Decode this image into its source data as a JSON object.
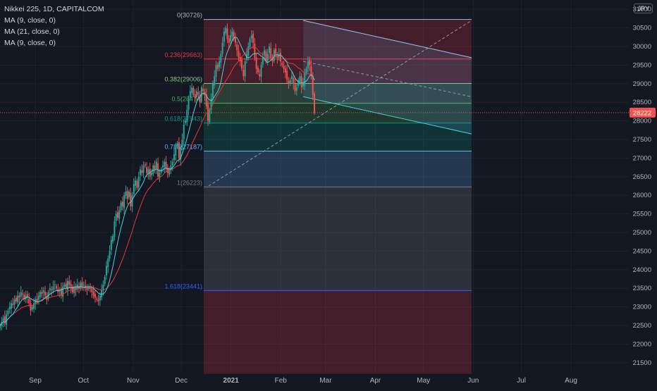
{
  "header": {
    "symbol_line": "Nikkei 225, 1D, CAPITALCOM",
    "indicators": [
      "MA (9, close, 0)",
      "MA (21, close, 0)",
      "MA (9, close, 0)"
    ],
    "currency": "JPY"
  },
  "colors": {
    "background": "#131722",
    "grid": "#1e222d",
    "up": "#26a69a",
    "down": "#ef5350",
    "ma9": "#4dd0e1",
    "ma21": "#e53935",
    "price_line": "#ef5350"
  },
  "price_axis": {
    "ticks": [
      31000,
      30500,
      30000,
      29500,
      29000,
      28500,
      28000,
      27500,
      27000,
      26500,
      26000,
      25500,
      25000,
      24500,
      24000,
      23500,
      23000,
      22500,
      22000,
      21500
    ],
    "ylim": [
      21250,
      31250
    ],
    "last_price": "28222"
  },
  "time_axis": {
    "labels": [
      {
        "text": "Sep",
        "day": 22
      },
      {
        "text": "Oct",
        "day": 52
      },
      {
        "text": "Nov",
        "day": 83
      },
      {
        "text": "Dec",
        "day": 113
      },
      {
        "text": "2021",
        "day": 144
      },
      {
        "text": "Feb",
        "day": 175
      },
      {
        "text": "Mar",
        "day": 203
      },
      {
        "text": "Apr",
        "day": 234
      },
      {
        "text": "May",
        "day": 264
      },
      {
        "text": "Jun",
        "day": 295
      },
      {
        "text": "Jul",
        "day": 325
      },
      {
        "text": "Aug",
        "day": 356
      }
    ],
    "day_range": [
      0,
      392
    ]
  },
  "chart_data": {
    "type": "candlestick",
    "title": "Nikkei 225, 1D, CAPITALCOM",
    "x_unit": "day index (Sep label = day 22)",
    "fib_retracement": {
      "start_day": 127,
      "end_day": 294,
      "levels": [
        {
          "ratio": "0",
          "price": 30726,
          "label": "0(30726)",
          "color": "#b2b5be",
          "fill": "rgba(120,123,134,0.25)"
        },
        {
          "ratio": "0.236",
          "price": 29663,
          "label": "0.236(29663)",
          "color": "#f23645",
          "fill": "rgba(242,54,69,0.22)"
        },
        {
          "ratio": "0.382",
          "price": 29006,
          "label": "0.382(29006)",
          "color": "#81c784",
          "fill": "rgba(129,199,132,0.22)"
        },
        {
          "ratio": "0.5",
          "price": 28474,
          "label": "0.5(28474)",
          "color": "#4caf50",
          "fill": "rgba(76,175,80,0.22)"
        },
        {
          "ratio": "0.618",
          "price": 27943,
          "label": "0.618(27943)",
          "color": "#089981",
          "fill": "rgba(8,153,129,0.22)"
        },
        {
          "ratio": "0.786",
          "price": 27187,
          "label": "0.786(27187)",
          "color": "#64b5f6",
          "fill": "rgba(100,181,246,0.22)"
        },
        {
          "ratio": "1",
          "price": 26223,
          "label": "1(26223)",
          "color": "#787b86",
          "fill": "rgba(120,123,134,0.25)"
        },
        {
          "ratio": "1.618",
          "price": 23441,
          "label": "1.618(23441)",
          "color": "#2962ff",
          "fill": "rgba(41,98,255,0.22)"
        }
      ],
      "bottom_price": 21200,
      "bottom_fill": "rgba(242,54,69,0.22)",
      "top_fill": "rgba(242,54,69,0.22)"
    },
    "channel": {
      "upper": [
        [
          189,
          30700
        ],
        [
          294,
          29700
        ]
      ],
      "lower": [
        [
          189,
          28650
        ],
        [
          294,
          27650
        ]
      ],
      "mid": [
        [
          189,
          29600
        ],
        [
          294,
          28650
        ]
      ],
      "fill": "rgba(100,181,246,0.15)",
      "color": "#90caf9"
    },
    "trend_line": {
      "points": [
        [
          130,
          26250
        ],
        [
          294,
          30700
        ]
      ],
      "color": "#9598a1"
    },
    "closes": [
      22500,
      22600,
      22700,
      22550,
      22800,
      22900,
      23000,
      23100,
      23050,
      23200,
      23150,
      23300,
      23250,
      23400,
      23350,
      23200,
      23300,
      23250,
      23100,
      22900,
      23000,
      23100,
      23200,
      23150,
      23300,
      23400,
      23350,
      23450,
      23300,
      23200,
      23400,
      23500,
      23450,
      23550,
      23600,
      23500,
      23400,
      23450,
      23300,
      23550,
      23600,
      23500,
      23700,
      23600,
      23500,
      23400,
      23550,
      23450,
      23600,
      23500,
      23650,
      23550,
      23600,
      23500,
      23450,
      23550,
      23500,
      23400,
      23300,
      23250,
      23200,
      23150,
      23300,
      23450,
      23600,
      23800,
      24100,
      24300,
      24500,
      24800,
      24900,
      25300,
      25500,
      25400,
      25600,
      25800,
      25700,
      26000,
      26100,
      25900,
      26100,
      25700,
      26000,
      26300,
      26400,
      26200,
      26500,
      26700,
      26600,
      26800,
      26800,
      26600,
      26700,
      26500,
      26600,
      26800,
      26700,
      26900,
      26500,
      26600,
      26700,
      26800,
      26900,
      26700,
      26600,
      26700,
      26800,
      26900,
      27100,
      27300,
      27400,
      27000,
      27300,
      27500,
      27900,
      28000,
      28300,
      28600,
      28800,
      28900,
      28700,
      28600,
      28800,
      28700,
      28500,
      28900,
      28800,
      28700,
      28400,
      28000,
      28300,
      28600,
      29000,
      29200,
      29500,
      29400,
      29600,
      29800,
      30100,
      30400,
      30500,
      30200,
      30100,
      30300,
      30400,
      30200,
      30100,
      29900,
      29700,
      29600,
      29400,
      29200,
      29600,
      29800,
      30000,
      30200,
      30300,
      30100,
      29700,
      29400,
      29300,
      29200,
      29500,
      29700,
      29900,
      29600,
      29800,
      30000,
      29700,
      29600,
      29900,
      29800,
      29700,
      29800,
      29600,
      29500,
      29400,
      29300,
      29100,
      29000,
      29100,
      29200,
      29000,
      28800,
      28900,
      29100,
      29200,
      28900,
      29000,
      29300,
      29400,
      29600,
      29500,
      29200,
      28700,
      28222
    ],
    "ma9_name": "MA (9, close, 0)",
    "ma21_name": "MA (21, close, 0)"
  }
}
